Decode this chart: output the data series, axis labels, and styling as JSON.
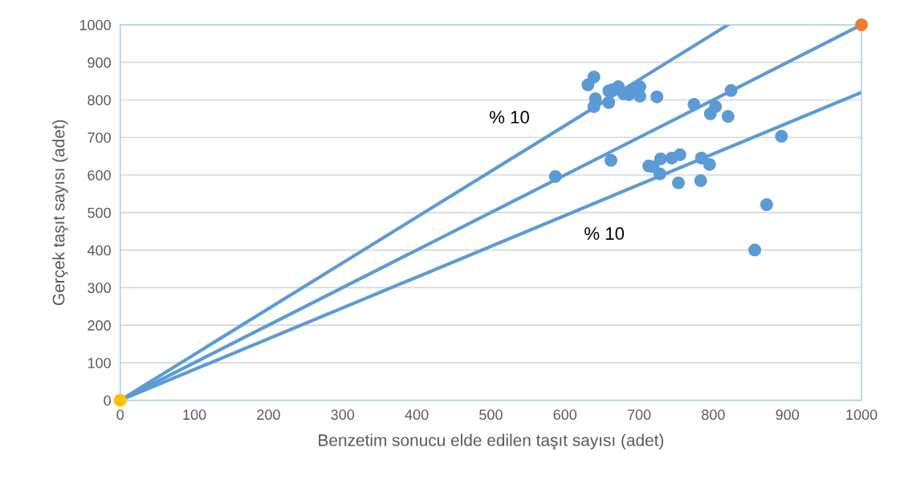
{
  "chart_data": {
    "type": "scatter",
    "xlabel": "Benzetim sonucu elde edilen taşıt sayısı (adet)",
    "ylabel": "Gerçek taşıt sayısı (adet)",
    "xlim": [
      0,
      1000
    ],
    "ylim": [
      0,
      1000
    ],
    "xticks": [
      0,
      100,
      200,
      300,
      400,
      500,
      600,
      700,
      800,
      900,
      1000
    ],
    "yticks": [
      0,
      100,
      200,
      300,
      400,
      500,
      600,
      700,
      800,
      900,
      1000
    ],
    "grid": "y",
    "legend": false,
    "series": [
      {
        "type": "line",
        "marker": "none",
        "color": "#5b9bd5",
        "x": [
          0,
          820
        ],
        "values": [
          0,
          1000
        ]
      },
      {
        "type": "line",
        "marker": "none",
        "color": "#5b9bd5",
        "x": [
          0,
          1000
        ],
        "values": [
          0,
          1000
        ]
      },
      {
        "type": "line",
        "marker": "none",
        "color": "#5b9bd5",
        "x": [
          0,
          1000
        ],
        "values": [
          0,
          820
        ]
      },
      {
        "marker": "circle",
        "color": "#5b9bd5",
        "x": [
          631,
          639,
          641,
          639,
          659,
          659,
          664,
          672,
          679,
          686,
          693,
          701,
          701,
          724,
          774,
          803,
          796,
          824,
          820,
          892,
          587,
          713,
          719,
          729,
          744,
          755,
          728,
          753,
          784,
          795,
          783,
          872,
          856,
          662
        ],
        "values": [
          840,
          861,
          803,
          782,
          793,
          824,
          827,
          835,
          816,
          814,
          827,
          835,
          810,
          808,
          788,
          782,
          763,
          825,
          756,
          703,
          596,
          624,
          622,
          643,
          645,
          654,
          603,
          579,
          645,
          628,
          585,
          521,
          400,
          639
        ]
      },
      {
        "marker": "circle",
        "color": "#ed7d31",
        "x": [
          1000
        ],
        "values": [
          1000
        ]
      },
      {
        "marker": "circle",
        "color": "#ffc000",
        "x": [
          0
        ],
        "values": [
          0
        ]
      }
    ],
    "annotations": [
      "% 10",
      "% 10"
    ]
  }
}
